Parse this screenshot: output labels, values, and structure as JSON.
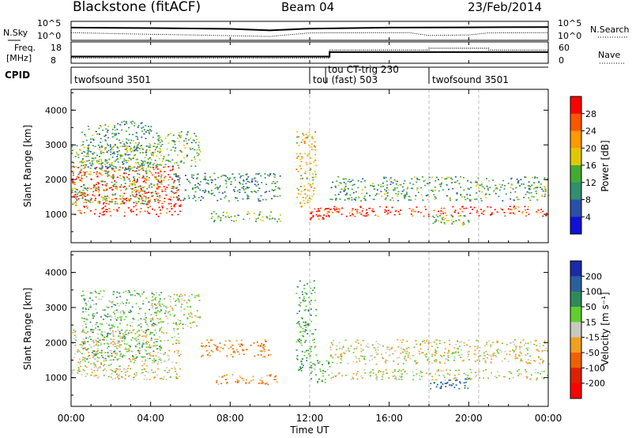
{
  "header": {
    "station": "Blackstone (fitACF)",
    "beam": "Beam 04",
    "date": "23/Feb/2014"
  },
  "strip_panels": {
    "nsky_label": "N.Sky",
    "nsearch_label": "N.Search",
    "noise_ticks_left": [
      "10^5",
      "10^0"
    ],
    "noise_ticks_right": [
      "10^5",
      "10^0"
    ],
    "freq_label_line1": "Freq.",
    "freq_label_line2": "[MHz]",
    "freq_ticks": [
      "18",
      "8"
    ],
    "nave_label": "Nave",
    "nave_ticks": [
      "60",
      "0"
    ],
    "cpid_label": "CPID",
    "cpid_entries": [
      {
        "label": "twofsound 3501",
        "start_hour": 0
      },
      {
        "label": "tou (fast) 503",
        "start_hour": 12
      },
      {
        "label": "tou CT-trig 230",
        "start_hour": 12.8
      },
      {
        "label": "twofsound 3501",
        "start_hour": 18
      }
    ]
  },
  "power_colorbar": {
    "label": "Power [dB]",
    "ticks": [
      "28",
      "24",
      "20",
      "16",
      "12",
      "8",
      "4"
    ],
    "colors": [
      "#ff0000",
      "#ff5500",
      "#ff9900",
      "#e0c800",
      "#44aa33",
      "#2f8f6f",
      "#2b4fa8",
      "#1010d8"
    ]
  },
  "velocity_colorbar": {
    "label": "Velocity [m s⁻¹]",
    "ticks": [
      "200",
      "100",
      "50",
      "15",
      "-15",
      "-50",
      "-100",
      "-200"
    ],
    "colors": [
      "#1a2aa8",
      "#2b5fa0",
      "#2e8a5a",
      "#5fcf2f",
      "#c8c8c0",
      "#f0a020",
      "#f06000",
      "#e02000",
      "#ff0000"
    ]
  },
  "chart_data": {
    "type": "heatmap",
    "title": "Blackstone (fitACF)",
    "xlabel": "Time UT",
    "ylabel": "Slant Range [km]",
    "x_ticks": [
      "00:00",
      "04:00",
      "08:00",
      "12:00",
      "16:00",
      "20:00",
      "00:00"
    ],
    "x_range_hours": [
      0,
      24
    ],
    "y_ticks": [
      "1000",
      "2000",
      "3000",
      "4000"
    ],
    "y_range_km": [
      180,
      4600
    ],
    "noise": {
      "nsky_log": [
        [
          0,
          4.1
        ],
        [
          4,
          3.9
        ],
        [
          8,
          3.6
        ],
        [
          10,
          3.0
        ],
        [
          12,
          3.7
        ],
        [
          16,
          4.1
        ],
        [
          20,
          4.2
        ],
        [
          24,
          4.3
        ]
      ],
      "nsearch_log": [
        [
          0,
          2.1
        ],
        [
          3,
          1.6
        ],
        [
          6,
          1.2
        ],
        [
          10,
          0.6
        ],
        [
          12,
          2.0
        ],
        [
          17,
          2.1
        ],
        [
          18,
          1.0
        ],
        [
          20,
          1.2
        ],
        [
          21,
          2.0
        ],
        [
          24,
          2.1
        ]
      ]
    },
    "frequency_mhz": [
      [
        0,
        10.5
      ],
      [
        13,
        10.5
      ],
      [
        13,
        14.5
      ],
      [
        24,
        14.5
      ]
    ],
    "nave": [
      [
        0,
        8
      ],
      [
        13,
        8
      ],
      [
        13,
        38
      ],
      [
        18,
        38
      ],
      [
        18,
        45
      ],
      [
        21,
        45
      ],
      [
        21,
        38
      ],
      [
        24,
        38
      ]
    ],
    "power_echo_bands": [
      {
        "t0": 0.0,
        "t1": 5.5,
        "r0": 950,
        "r1": 2400,
        "db": 27
      },
      {
        "t0": 0.0,
        "t1": 4.5,
        "r0": 1300,
        "r1": 3000,
        "db": 13
      },
      {
        "t0": 0.5,
        "t1": 4.0,
        "r0": 2300,
        "r1": 3700,
        "db": 9
      },
      {
        "t0": 4.0,
        "t1": 6.5,
        "r0": 2400,
        "r1": 3400,
        "db": 11
      },
      {
        "t0": 5.0,
        "t1": 10.5,
        "r0": 1400,
        "r1": 2200,
        "db": 8
      },
      {
        "t0": 7.0,
        "t1": 10.5,
        "r0": 800,
        "r1": 1100,
        "db": 12
      },
      {
        "t0": 11.3,
        "t1": 12.3,
        "r0": 1200,
        "r1": 3400,
        "db": 18
      },
      {
        "t0": 12.0,
        "t1": 13.0,
        "r0": 850,
        "r1": 1200,
        "db": 27
      },
      {
        "t0": 13.0,
        "t1": 24.0,
        "r0": 950,
        "r1": 1250,
        "db": 26
      },
      {
        "t0": 13.0,
        "t1": 24.0,
        "r0": 1400,
        "r1": 2100,
        "db": 10
      },
      {
        "t0": 18.0,
        "t1": 20.0,
        "r0": 700,
        "r1": 1000,
        "db": 12
      }
    ],
    "velocity_echo_bands": [
      {
        "t0": 0.0,
        "t1": 5.5,
        "r0": 950,
        "r1": 2400,
        "vel": -10
      },
      {
        "t0": 0.5,
        "t1": 4.5,
        "r0": 1500,
        "r1": 3500,
        "vel": 40
      },
      {
        "t0": 4.0,
        "t1": 6.5,
        "r0": 2400,
        "r1": 3400,
        "vel": 10
      },
      {
        "t0": 6.5,
        "t1": 10.0,
        "r0": 1600,
        "r1": 2100,
        "vel": -60
      },
      {
        "t0": 7.0,
        "t1": 10.5,
        "r0": 800,
        "r1": 1100,
        "vel": -50
      },
      {
        "t0": 11.3,
        "t1": 12.3,
        "r0": 1200,
        "r1": 3800,
        "vel": 60
      },
      {
        "t0": 12.0,
        "t1": 13.0,
        "r0": 850,
        "r1": 1500,
        "vel": 40
      },
      {
        "t0": 13.0,
        "t1": 24.0,
        "r0": 950,
        "r1": 1250,
        "vel": 0
      },
      {
        "t0": 13.0,
        "t1": 24.0,
        "r0": 1400,
        "r1": 2100,
        "vel": -5
      },
      {
        "t0": 18.0,
        "t1": 20.0,
        "r0": 700,
        "r1": 1000,
        "vel": 120
      }
    ]
  }
}
